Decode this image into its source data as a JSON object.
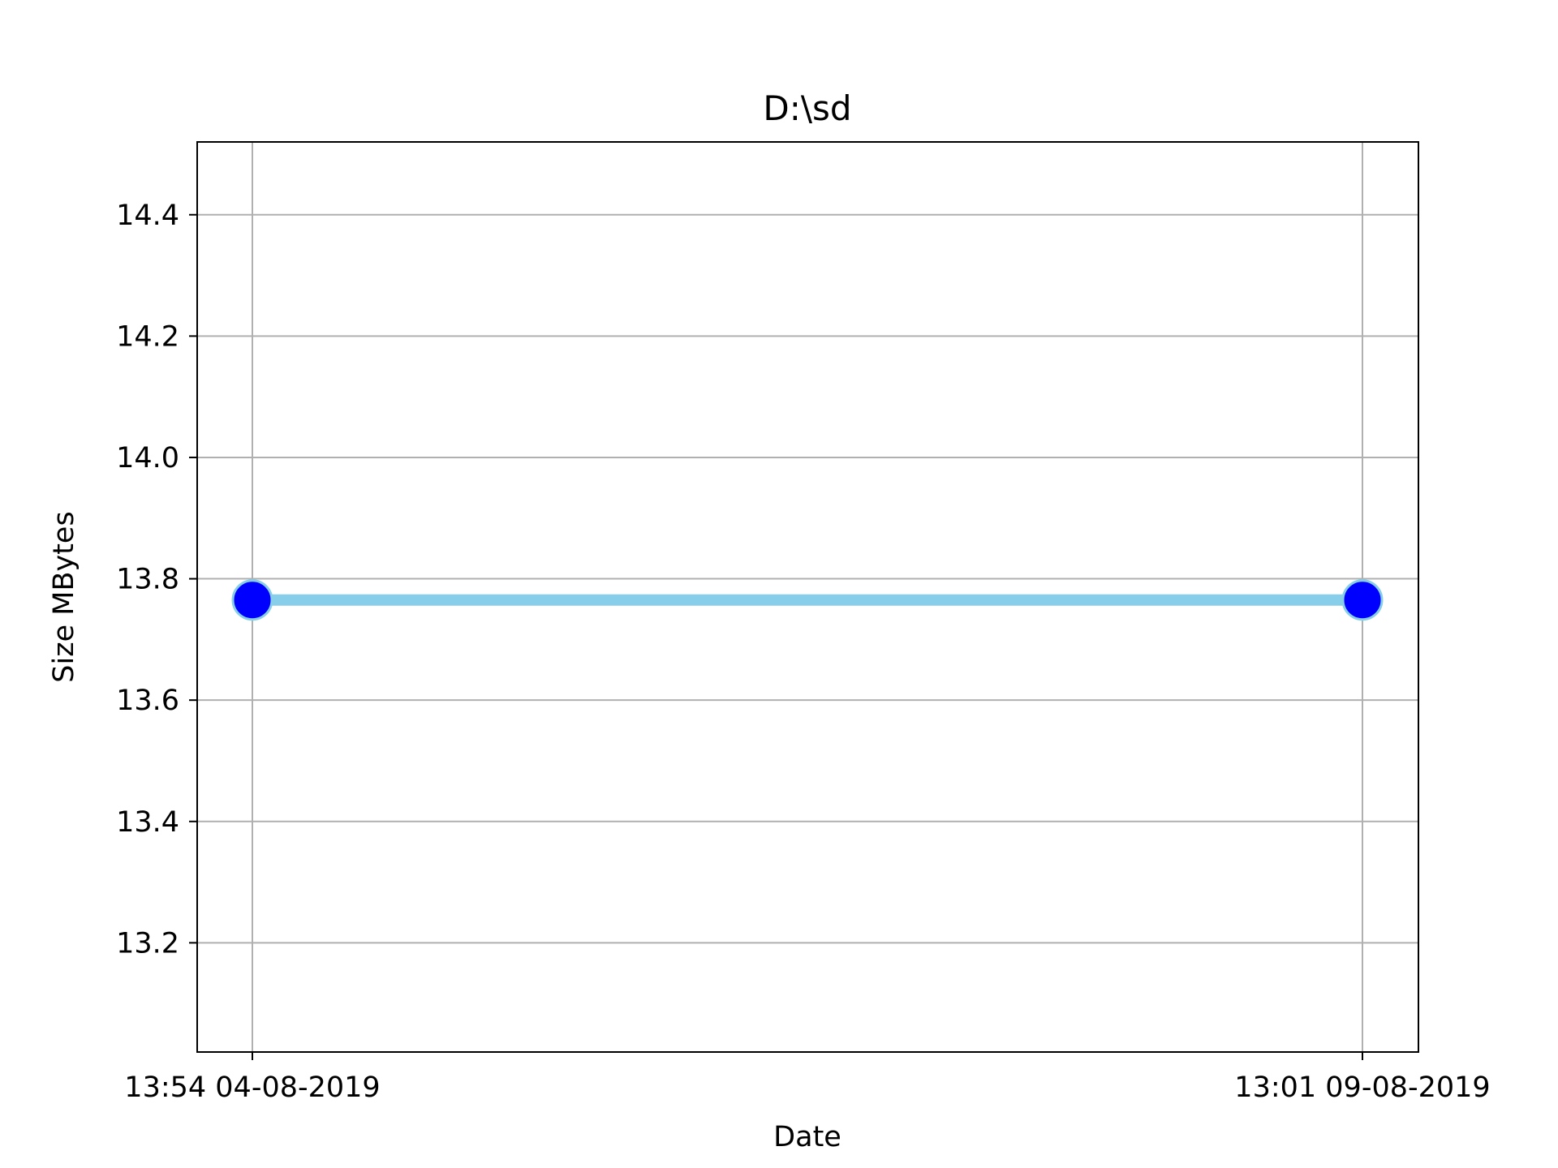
{
  "chart_data": {
    "type": "line",
    "title": "D:\\sd",
    "xlabel": "Date",
    "ylabel": "Size MBytes",
    "x": [
      "13:54 04-08-2019",
      "13:01 09-08-2019"
    ],
    "x_tick_labels": [
      "13:54 04-08-2019",
      "13:01 09-08-2019"
    ],
    "series": [
      {
        "values": [
          13.765,
          13.765
        ]
      }
    ],
    "ylim": [
      13.02,
      14.52
    ],
    "y_ticks": [
      13.2,
      13.4,
      13.6,
      13.8,
      14.0,
      14.2,
      14.4
    ],
    "y_tick_labels": [
      "13.2",
      "13.4",
      "13.6",
      "13.8",
      "14.0",
      "14.2",
      "14.4"
    ],
    "grid": true,
    "colors": {
      "line": "#87ceeb",
      "marker": "#0000ff",
      "grid": "#b0b0b0"
    }
  }
}
